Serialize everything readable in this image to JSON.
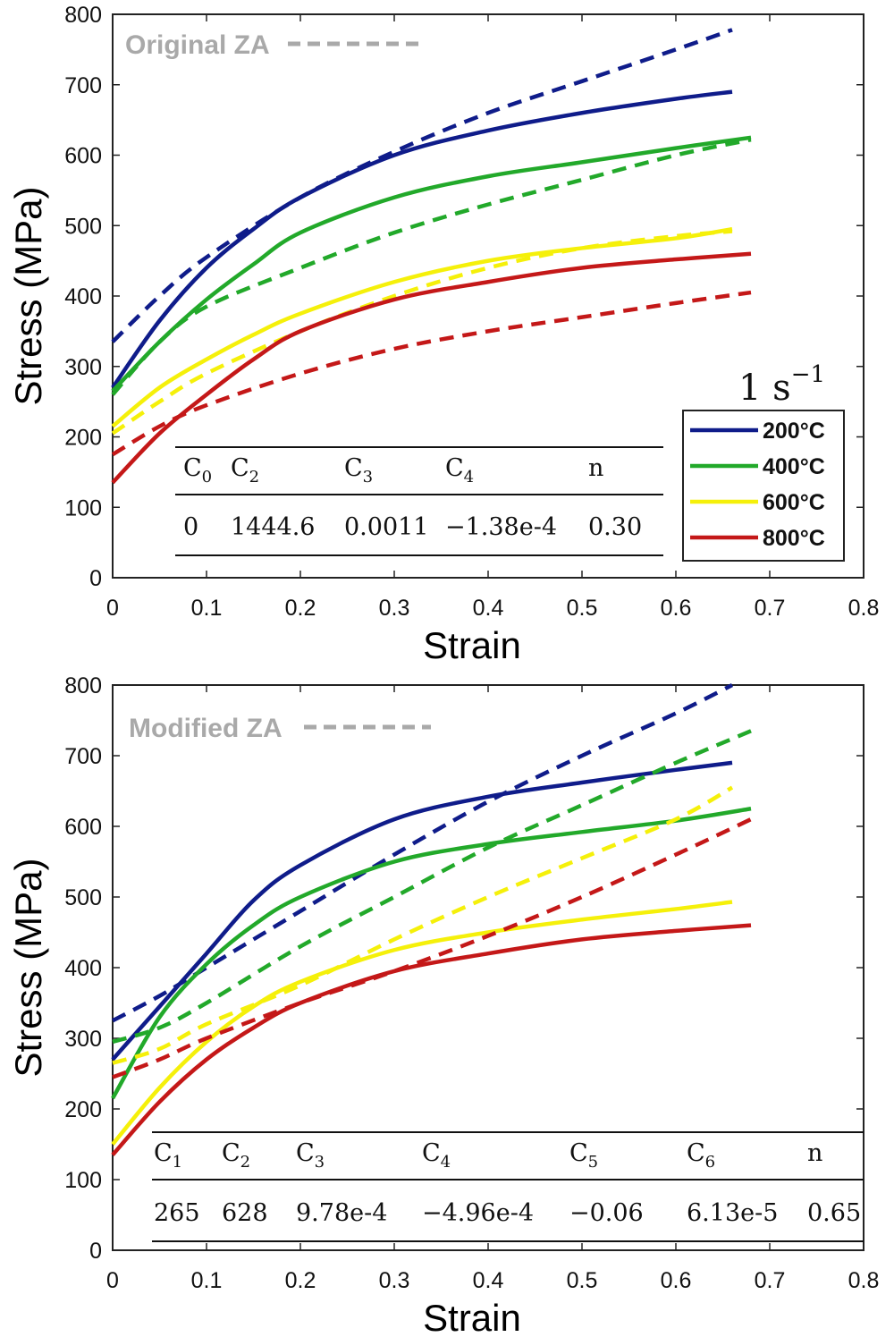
{
  "legend": {
    "rate": {
      "base": "1 s",
      "exponent": "−1"
    },
    "entries": [
      {
        "label": "200°C",
        "color": "#0f1c8a"
      },
      {
        "label": "400°C",
        "color": "#22a92a"
      },
      {
        "label": "600°C",
        "color": "#f5f00a"
      },
      {
        "label": "800°C",
        "color": "#c41818"
      }
    ]
  },
  "chart_data": [
    {
      "type": "line",
      "annotation": "Original ZA",
      "xlabel": "Strain",
      "ylabel": "Stress (MPa)",
      "xlim": [
        0,
        0.8
      ],
      "ylim": [
        0,
        800
      ],
      "xticks": [
        "0",
        "0.1",
        "0.2",
        "0.3",
        "0.4",
        "0.5",
        "0.6",
        "0.7",
        "0.8"
      ],
      "yticks": [
        "0",
        "100",
        "200",
        "300",
        "400",
        "500",
        "600",
        "700",
        "800"
      ],
      "series": [
        {
          "temp": "200°C",
          "style": "solid",
          "color": "#0f1c8a",
          "x": [
            0,
            0.05,
            0.1,
            0.15,
            0.2,
            0.3,
            0.4,
            0.5,
            0.6,
            0.66
          ],
          "y": [
            270,
            365,
            440,
            495,
            540,
            600,
            635,
            660,
            680,
            690
          ]
        },
        {
          "temp": "200°C",
          "style": "dashed",
          "color": "#0f1c8a",
          "x": [
            0,
            0.05,
            0.1,
            0.2,
            0.3,
            0.4,
            0.5,
            0.6,
            0.66
          ],
          "y": [
            335,
            400,
            455,
            540,
            605,
            660,
            705,
            750,
            778
          ]
        },
        {
          "temp": "400°C",
          "style": "solid",
          "color": "#22a92a",
          "x": [
            0,
            0.05,
            0.1,
            0.15,
            0.2,
            0.3,
            0.4,
            0.5,
            0.6,
            0.68
          ],
          "y": [
            265,
            335,
            395,
            445,
            490,
            540,
            570,
            590,
            610,
            625
          ]
        },
        {
          "temp": "400°C",
          "style": "dashed",
          "color": "#22a92a",
          "x": [
            0,
            0.05,
            0.1,
            0.2,
            0.3,
            0.4,
            0.5,
            0.6,
            0.68
          ],
          "y": [
            260,
            335,
            385,
            440,
            490,
            530,
            565,
            600,
            622
          ]
        },
        {
          "temp": "600°C",
          "style": "solid",
          "color": "#f5f00a",
          "x": [
            0,
            0.05,
            0.1,
            0.15,
            0.2,
            0.3,
            0.4,
            0.5,
            0.6,
            0.66
          ],
          "y": [
            215,
            270,
            310,
            345,
            375,
            420,
            450,
            468,
            482,
            495
          ]
        },
        {
          "temp": "600°C",
          "style": "dashed",
          "color": "#f5f00a",
          "x": [
            0,
            0.05,
            0.1,
            0.2,
            0.3,
            0.4,
            0.5,
            0.6,
            0.66
          ],
          "y": [
            205,
            250,
            290,
            350,
            400,
            440,
            468,
            485,
            492
          ]
        },
        {
          "temp": "800°C",
          "style": "solid",
          "color": "#c41818",
          "x": [
            0,
            0.05,
            0.1,
            0.15,
            0.2,
            0.3,
            0.4,
            0.5,
            0.6,
            0.68
          ],
          "y": [
            135,
            205,
            260,
            310,
            350,
            395,
            420,
            440,
            452,
            460
          ]
        },
        {
          "temp": "800°C",
          "style": "dashed",
          "color": "#c41818",
          "x": [
            0,
            0.05,
            0.1,
            0.2,
            0.3,
            0.4,
            0.5,
            0.6,
            0.68
          ],
          "y": [
            175,
            215,
            245,
            290,
            325,
            350,
            370,
            390,
            405
          ]
        }
      ],
      "table": {
        "headers": [
          {
            "base": "C",
            "sub": "0"
          },
          {
            "base": "C",
            "sub": "2"
          },
          {
            "base": "C",
            "sub": "3"
          },
          {
            "base": "C",
            "sub": "4"
          },
          {
            "base": "n",
            "sub": ""
          }
        ],
        "values": [
          "0",
          "1444.6",
          "0.0011",
          "−1.38e-4",
          "0.30"
        ]
      }
    },
    {
      "type": "line",
      "annotation": "Modified ZA",
      "xlabel": "Strain",
      "ylabel": "Stress (MPa)",
      "xlim": [
        0,
        0.8
      ],
      "ylim": [
        0,
        800
      ],
      "xticks": [
        "0",
        "0.1",
        "0.2",
        "0.3",
        "0.4",
        "0.5",
        "0.6",
        "0.7",
        "0.8"
      ],
      "yticks": [
        "0",
        "100",
        "200",
        "300",
        "400",
        "500",
        "600",
        "700",
        "800"
      ],
      "series": [
        {
          "temp": "200°C",
          "style": "solid",
          "color": "#0f1c8a",
          "x": [
            0,
            0.05,
            0.1,
            0.15,
            0.2,
            0.3,
            0.4,
            0.5,
            0.6,
            0.66
          ],
          "y": [
            270,
            345,
            420,
            495,
            545,
            610,
            642,
            662,
            680,
            690
          ]
        },
        {
          "temp": "200°C",
          "style": "dashed",
          "color": "#0f1c8a",
          "x": [
            0,
            0.05,
            0.1,
            0.2,
            0.3,
            0.4,
            0.5,
            0.6,
            0.66
          ],
          "y": [
            325,
            360,
            400,
            480,
            560,
            635,
            700,
            760,
            800
          ]
        },
        {
          "temp": "400°C",
          "style": "solid",
          "color": "#22a92a",
          "x": [
            0,
            0.05,
            0.1,
            0.15,
            0.2,
            0.3,
            0.4,
            0.5,
            0.6,
            0.68
          ],
          "y": [
            215,
            330,
            405,
            460,
            500,
            550,
            575,
            592,
            608,
            625
          ]
        },
        {
          "temp": "400°C",
          "style": "dashed",
          "color": "#22a92a",
          "x": [
            0,
            0.05,
            0.1,
            0.2,
            0.3,
            0.4,
            0.5,
            0.6,
            0.68
          ],
          "y": [
            295,
            315,
            350,
            430,
            500,
            570,
            630,
            690,
            735
          ]
        },
        {
          "temp": "600°C",
          "style": "solid",
          "color": "#f5f00a",
          "x": [
            0,
            0.05,
            0.1,
            0.15,
            0.2,
            0.3,
            0.4,
            0.5,
            0.6,
            0.66
          ],
          "y": [
            150,
            230,
            295,
            345,
            380,
            425,
            450,
            468,
            483,
            493
          ]
        },
        {
          "temp": "600°C",
          "style": "dashed",
          "color": "#f5f00a",
          "x": [
            0,
            0.05,
            0.1,
            0.2,
            0.3,
            0.4,
            0.5,
            0.6,
            0.66
          ],
          "y": [
            265,
            285,
            320,
            375,
            440,
            500,
            555,
            610,
            655
          ]
        },
        {
          "temp": "800°C",
          "style": "solid",
          "color": "#c41818",
          "x": [
            0,
            0.05,
            0.1,
            0.15,
            0.2,
            0.3,
            0.4,
            0.5,
            0.6,
            0.68
          ],
          "y": [
            135,
            210,
            270,
            315,
            350,
            395,
            420,
            440,
            452,
            460
          ]
        },
        {
          "temp": "800°C",
          "style": "dashed",
          "color": "#c41818",
          "x": [
            0,
            0.05,
            0.1,
            0.2,
            0.3,
            0.4,
            0.5,
            0.6,
            0.68
          ],
          "y": [
            245,
            270,
            300,
            350,
            395,
            445,
            500,
            560,
            610
          ]
        }
      ],
      "table": {
        "headers": [
          {
            "base": "C",
            "sub": "1"
          },
          {
            "base": "C",
            "sub": "2"
          },
          {
            "base": "C",
            "sub": "3"
          },
          {
            "base": "C",
            "sub": "4"
          },
          {
            "base": "C",
            "sub": "5"
          },
          {
            "base": "C",
            "sub": "6"
          },
          {
            "base": "n",
            "sub": ""
          }
        ],
        "values": [
          "265",
          "628",
          "9.78e-4",
          "−4.96e-4",
          "−0.06",
          "6.13e-5",
          "0.65"
        ]
      }
    }
  ]
}
